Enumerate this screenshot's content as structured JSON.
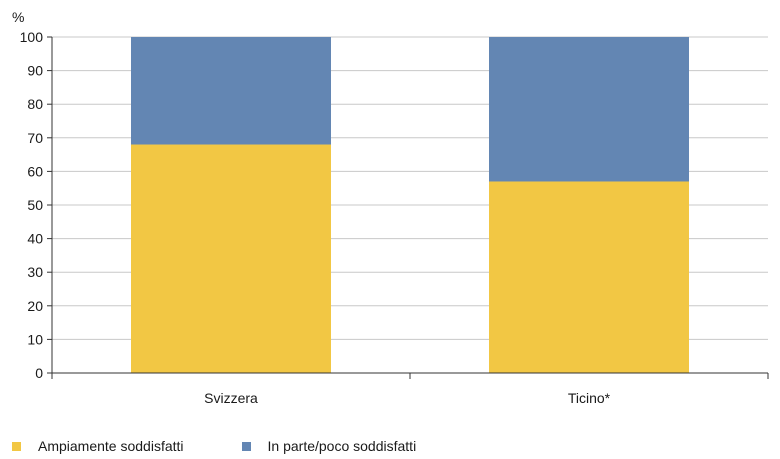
{
  "chart_data": {
    "type": "bar",
    "stacked": true,
    "ylabel": "%",
    "ylim": [
      0,
      100
    ],
    "yticks": [
      0,
      10,
      20,
      30,
      40,
      50,
      60,
      70,
      80,
      90,
      100
    ],
    "grid": true,
    "categories": [
      "Svizzera",
      "Ticino*"
    ],
    "series": [
      {
        "name": "Ampiamente soddisfatti",
        "values": [
          68,
          57
        ],
        "color": "#f2c744"
      },
      {
        "name": "In parte/poco soddisfatti",
        "values": [
          32,
          43
        ],
        "color": "#6386b3"
      }
    ],
    "legend_position": "bottom-left"
  }
}
